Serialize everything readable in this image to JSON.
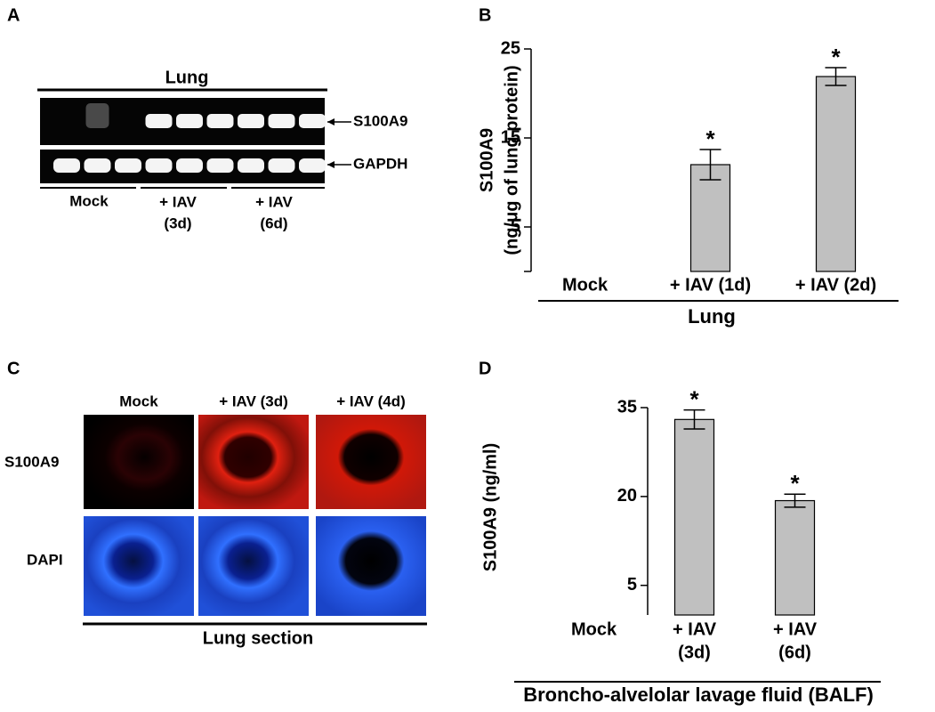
{
  "panel_labels": [
    "A",
    "B",
    "C",
    "D"
  ],
  "gel": {
    "title": "Lung",
    "bands": [
      "S100A9",
      "GAPDH"
    ],
    "groups": [
      [
        "Mock"
      ],
      [
        "+ IAV",
        "(3d)"
      ],
      [
        "+ IAV",
        "(6d)"
      ]
    ]
  },
  "microscopy": {
    "columns": [
      "Mock",
      "+ IAV (3d)",
      "+ IAV (4d)"
    ],
    "rows": [
      "S100A9",
      "DAPI"
    ],
    "caption": "Lung section"
  },
  "chart_data": [
    {
      "type": "bar",
      "ylabel": [
        "S100A9",
        "(ng/μg of lung protein)"
      ],
      "xlabel": "Lung",
      "categories": [
        [
          "Mock"
        ],
        [
          "+ IAV (1d)"
        ],
        [
          "+ IAV (2d)"
        ]
      ],
      "values": [
        0,
        12,
        21.9
      ],
      "errors": [
        0,
        1.7,
        1
      ],
      "annotations": [
        null,
        "*",
        "*"
      ],
      "color": "#c0c0c0",
      "ylim": [
        0,
        25
      ],
      "yticks": [
        5,
        15,
        25
      ]
    },
    {
      "type": "bar",
      "ylabel": [
        "S100A9 (ng/ml)"
      ],
      "xlabel": "Broncho-alvelolar lavage fluid (BALF)",
      "categories": [
        [
          "Mock"
        ],
        [
          "+ IAV",
          "(3d)"
        ],
        [
          "+ IAV",
          "(6d)"
        ]
      ],
      "values": [
        0,
        33,
        19.3
      ],
      "errors": [
        0,
        1.6,
        1.1
      ],
      "annotations": [
        null,
        "*",
        "*"
      ],
      "color": "#c0c0c0",
      "ylim": [
        0,
        35
      ],
      "yticks": [
        5,
        20,
        35
      ]
    }
  ]
}
